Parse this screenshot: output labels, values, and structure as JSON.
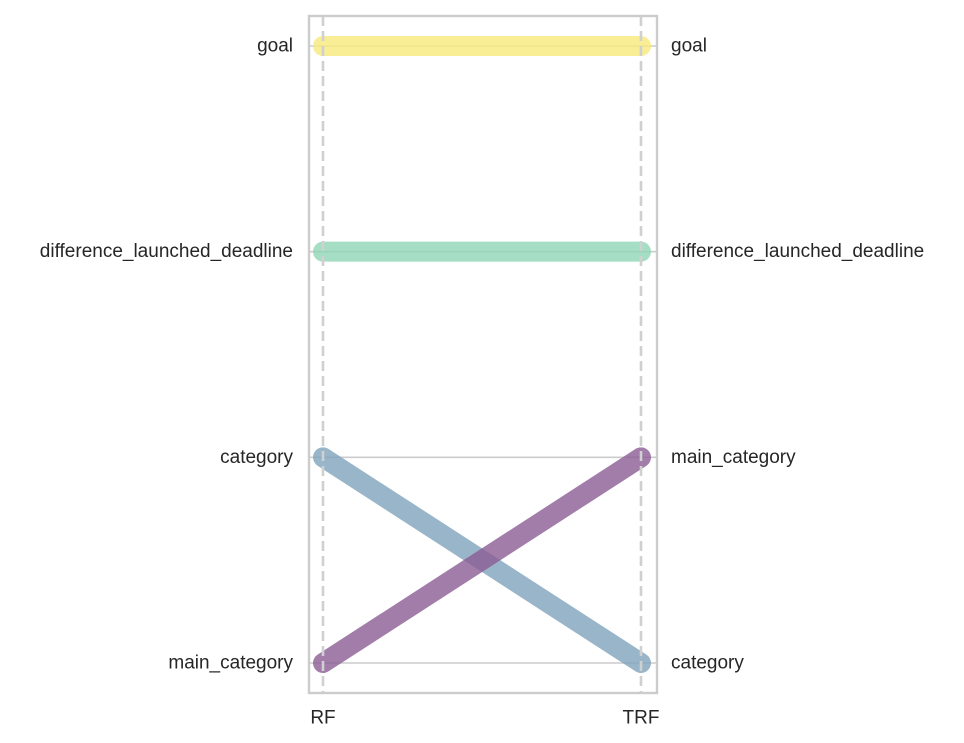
{
  "chart_data": {
    "type": "line",
    "categories": [
      "RF",
      "TRF"
    ],
    "y_order": [
      [
        "goal",
        "difference_launched_deadline",
        "category",
        "main_category"
      ],
      [
        "goal",
        "difference_launched_deadline",
        "main_category",
        "category"
      ]
    ],
    "series": [
      {
        "name": "goal",
        "values": [
          1,
          1
        ],
        "color": "#f7ea7a"
      },
      {
        "name": "difference_launched_deadline",
        "values": [
          2,
          2
        ],
        "color": "#8fd6b5"
      },
      {
        "name": "category",
        "values": [
          3,
          4
        ],
        "color": "#7fa3bb"
      },
      {
        "name": "main_category",
        "values": [
          4,
          3
        ],
        "color": "#8b5d95"
      }
    ],
    "left_tick_labels": [
      "goal",
      "difference_launched_deadline",
      "category",
      "main_category"
    ],
    "right_tick_labels": [
      "goal",
      "difference_launched_deadline",
      "main_category",
      "category"
    ],
    "ylim": [
      0.85,
      4.15
    ],
    "grid": true,
    "legend": "none",
    "frame_color": "#cccccc",
    "grid_color": "#cccccc"
  }
}
